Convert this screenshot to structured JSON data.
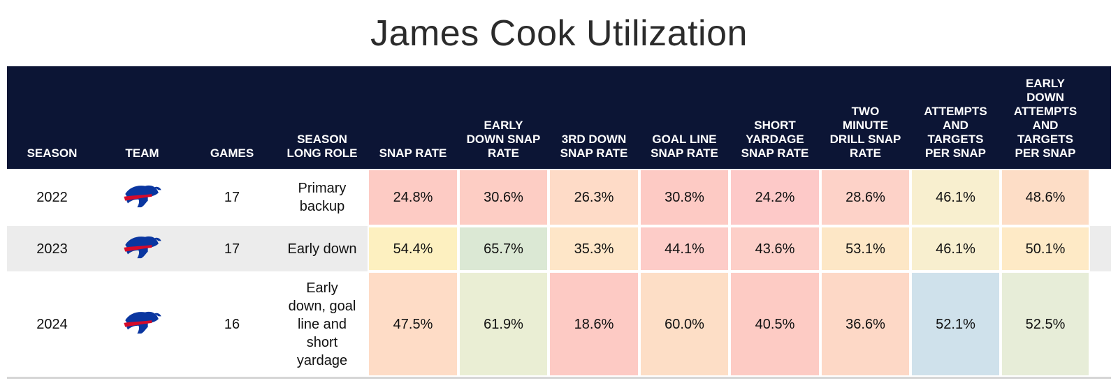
{
  "title": "James Cook Utilization",
  "chart_data": {
    "type": "table",
    "title": "James Cook Utilization",
    "columns": [
      "SEASON",
      "TEAM",
      "GAMES",
      "SEASON LONG ROLE",
      "SNAP RATE",
      "EARLY DOWN SNAP RATE",
      "3RD DOWN SNAP RATE",
      "GOAL LINE SNAP RATE",
      "SHORT YARDAGE SNAP RATE",
      "TWO MINUTE DRILL SNAP RATE",
      "ATTEMPTS AND TARGETS PER SNAP",
      "EARLY DOWN ATTEMPTS AND TARGETS PER SNAP"
    ],
    "rows": [
      {
        "season": "2022",
        "team_icon": "buffalo-bills-logo-icon",
        "games": "17",
        "role": "Primary backup",
        "metrics": [
          "24.8%",
          "30.6%",
          "26.3%",
          "30.8%",
          "24.2%",
          "28.6%",
          "46.1%",
          "48.6%"
        ],
        "colors": [
          "#fdcbc4",
          "#fdcdc4",
          "#fedbc7",
          "#fdcac4",
          "#fdc9c8",
          "#fdd2c8",
          "#f8efcf",
          "#fdddc6"
        ]
      },
      {
        "season": "2023",
        "team_icon": "buffalo-bills-logo-icon",
        "games": "17",
        "role": "Early down",
        "metrics": [
          "54.4%",
          "65.7%",
          "35.3%",
          "44.1%",
          "43.6%",
          "53.1%",
          "46.1%",
          "50.1%"
        ],
        "colors": [
          "#fdf0c0",
          "#dbe8d4",
          "#fee6c8",
          "#fdccc8",
          "#fdcfc8",
          "#fde7c6",
          "#f8efcf",
          "#feeac6"
        ]
      },
      {
        "season": "2024",
        "team_icon": "buffalo-bills-logo-icon",
        "games": "16",
        "role": "Early down, goal line and short yardage",
        "metrics": [
          "47.5%",
          "61.9%",
          "18.6%",
          "60.0%",
          "40.5%",
          "36.6%",
          "52.1%",
          "52.5%"
        ],
        "colors": [
          "#fedcc6",
          "#eaeed4",
          "#fdcac4",
          "#fddec6",
          "#fdcbc4",
          "#fdd8c6",
          "#cfe1eb",
          "#e7edd8"
        ]
      }
    ]
  }
}
